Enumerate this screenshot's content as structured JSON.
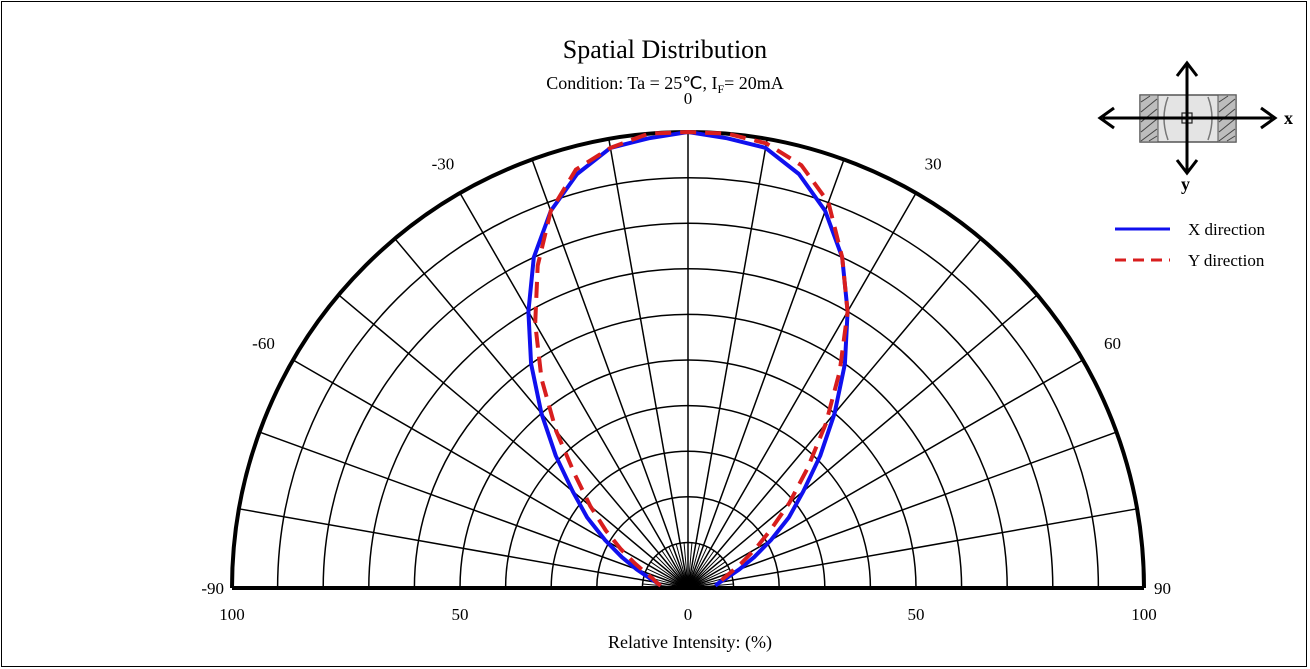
{
  "chart_data": {
    "type": "polar-line",
    "title": "Spatial Distribution",
    "subtitle_prefix": "Condition: Ta = 25℃, I",
    "subtitle_sub": "F",
    "subtitle_suffix": "= 20mA",
    "xlabel": "Relative Intensity: (%)",
    "angle_range": [
      -90,
      90
    ],
    "radius_range": [
      0,
      100
    ],
    "angle_tick_labels": [
      "-90",
      "-60",
      "-30",
      "0",
      "30",
      "60",
      "90"
    ],
    "radial_tick_labels": [
      "100",
      "50",
      "0",
      "50",
      "100"
    ],
    "grid": true,
    "legend_position": "top-right",
    "series": [
      {
        "name": "X direction",
        "color": "#1010ee",
        "style": "solid",
        "points": [
          {
            "angle": -85,
            "value": 6
          },
          {
            "angle": -80,
            "value": 7
          },
          {
            "angle": -75,
            "value": 9
          },
          {
            "angle": -70,
            "value": 12
          },
          {
            "angle": -65,
            "value": 16
          },
          {
            "angle": -60,
            "value": 21
          },
          {
            "angle": -55,
            "value": 27
          },
          {
            "angle": -50,
            "value": 33
          },
          {
            "angle": -45,
            "value": 41
          },
          {
            "angle": -40,
            "value": 50
          },
          {
            "angle": -35,
            "value": 60
          },
          {
            "angle": -30,
            "value": 70
          },
          {
            "angle": -25,
            "value": 80
          },
          {
            "angle": -20,
            "value": 88
          },
          {
            "angle": -15,
            "value": 94
          },
          {
            "angle": -10,
            "value": 98
          },
          {
            "angle": -5,
            "value": 99
          },
          {
            "angle": 0,
            "value": 100
          },
          {
            "angle": 5,
            "value": 99
          },
          {
            "angle": 10,
            "value": 98
          },
          {
            "angle": 15,
            "value": 94
          },
          {
            "angle": 20,
            "value": 88
          },
          {
            "angle": 25,
            "value": 80
          },
          {
            "angle": 30,
            "value": 70
          },
          {
            "angle": 35,
            "value": 60
          },
          {
            "angle": 40,
            "value": 50
          },
          {
            "angle": 45,
            "value": 41
          },
          {
            "angle": 50,
            "value": 33
          },
          {
            "angle": 55,
            "value": 27
          },
          {
            "angle": 60,
            "value": 21
          },
          {
            "angle": 65,
            "value": 16
          },
          {
            "angle": 70,
            "value": 12
          },
          {
            "angle": 75,
            "value": 9
          },
          {
            "angle": 80,
            "value": 7
          },
          {
            "angle": 85,
            "value": 6
          }
        ]
      },
      {
        "name": "Y direction",
        "color": "#d81e1e",
        "style": "dashed",
        "points": [
          {
            "angle": -85,
            "value": 6
          },
          {
            "angle": -80,
            "value": 7
          },
          {
            "angle": -75,
            "value": 8
          },
          {
            "angle": -70,
            "value": 10
          },
          {
            "angle": -65,
            "value": 13
          },
          {
            "angle": -60,
            "value": 17
          },
          {
            "angle": -55,
            "value": 22
          },
          {
            "angle": -50,
            "value": 28
          },
          {
            "angle": -45,
            "value": 35
          },
          {
            "angle": -40,
            "value": 45
          },
          {
            "angle": -35,
            "value": 56
          },
          {
            "angle": -30,
            "value": 67
          },
          {
            "angle": -25,
            "value": 78
          },
          {
            "angle": -20,
            "value": 88
          },
          {
            "angle": -15,
            "value": 95
          },
          {
            "angle": -10,
            "value": 98
          },
          {
            "angle": -5,
            "value": 100
          },
          {
            "angle": 0,
            "value": 100
          },
          {
            "angle": 5,
            "value": 100
          },
          {
            "angle": 10,
            "value": 99
          },
          {
            "angle": 15,
            "value": 96
          },
          {
            "angle": 20,
            "value": 90
          },
          {
            "angle": 25,
            "value": 80
          },
          {
            "angle": 30,
            "value": 70
          },
          {
            "angle": 35,
            "value": 58
          },
          {
            "angle": 40,
            "value": 47
          },
          {
            "angle": 45,
            "value": 37
          },
          {
            "angle": 50,
            "value": 29
          },
          {
            "angle": 55,
            "value": 22
          },
          {
            "angle": 60,
            "value": 17
          },
          {
            "angle": 65,
            "value": 13
          },
          {
            "angle": 70,
            "value": 10
          },
          {
            "angle": 75,
            "value": 8
          },
          {
            "angle": 80,
            "value": 7
          },
          {
            "angle": 85,
            "value": 6
          }
        ]
      }
    ]
  },
  "inset": {
    "x_label": "x",
    "y_label": "y"
  }
}
